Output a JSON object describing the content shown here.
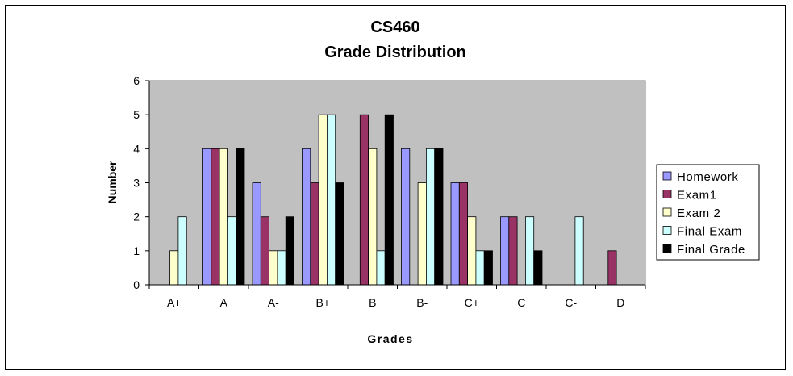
{
  "chart_data": {
    "type": "bar",
    "title_lines": [
      "CS460",
      "Grade Distribution"
    ],
    "xlabel": "Grades",
    "ylabel": "Number",
    "ylim": [
      0,
      6
    ],
    "yticks": [
      "0",
      "1",
      "2",
      "3",
      "4",
      "5",
      "6"
    ],
    "categories": [
      "A+",
      "A",
      "A-",
      "B+",
      "B",
      "B-",
      "C+",
      "C",
      "C-",
      "D"
    ],
    "grid": false,
    "legend_position": "right",
    "series": [
      {
        "name": "Homework",
        "color": "#9999ff",
        "values": [
          0,
          4,
          3,
          4,
          0,
          4,
          3,
          2,
          0,
          0
        ]
      },
      {
        "name": "Exam1",
        "color": "#993366",
        "values": [
          0,
          4,
          2,
          3,
          5,
          0,
          3,
          2,
          0,
          1
        ]
      },
      {
        "name": "Exam 2",
        "color": "#ffffcc",
        "values": [
          1,
          4,
          1,
          5,
          4,
          3,
          2,
          0,
          0,
          0
        ]
      },
      {
        "name": "Final Exam",
        "color": "#ccffff",
        "values": [
          2,
          2,
          1,
          5,
          1,
          4,
          1,
          2,
          2,
          0
        ]
      },
      {
        "name": "Final Grade",
        "color": "#000000",
        "values": [
          0,
          4,
          2,
          3,
          5,
          4,
          1,
          1,
          0,
          0
        ]
      }
    ],
    "plot_background": "#c0c0c0"
  }
}
